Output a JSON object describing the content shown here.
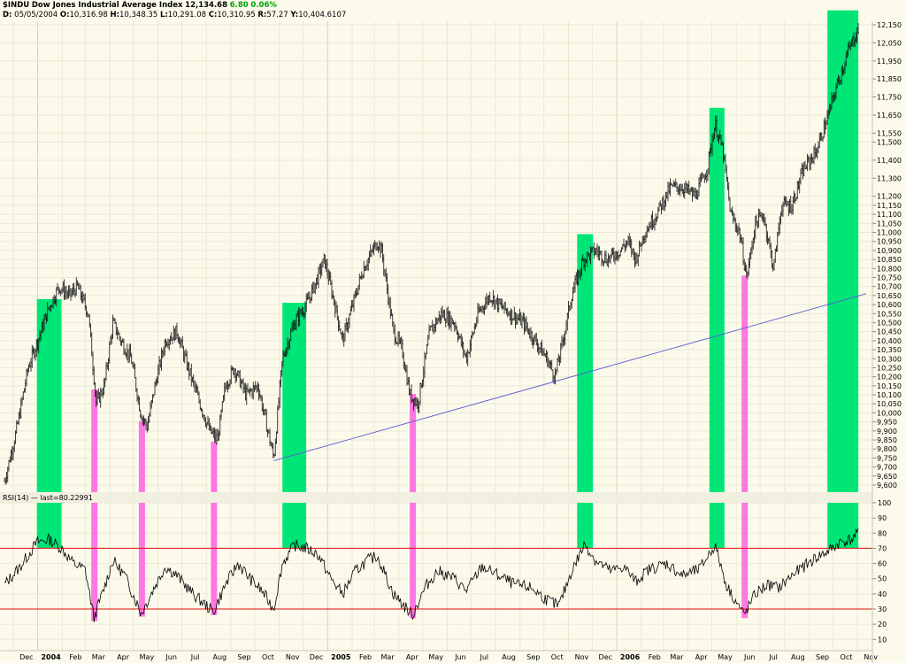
{
  "header": {
    "ticker": "$INDU",
    "name": "Dow Jones Industrial Average Index",
    "last": "12,134.68",
    "change": "6.80",
    "change_pct": "0.06%",
    "d_label": "D:",
    "d_value": "05/05/2004",
    "o_label": "O:",
    "o_value": "10,316.98",
    "h_label": "H:",
    "h_value": "10,348.35",
    "l_label": "L:",
    "l_value": "10,291.08",
    "c_label": "C:",
    "c_value": "10,310.95",
    "r_label": "R:",
    "r_value": "57.27",
    "y_label": "Y:",
    "y_value": "10,404.6107"
  },
  "rsi_legend": "RSI(14) — last=80.22991",
  "chart_data": [
    {
      "type": "line",
      "series_style": "ohlc-bars",
      "ticker": "$INDU",
      "ylim": [
        9550,
        12230
      ],
      "y_ticks": [
        "12,150",
        "12,050",
        "11,950",
        "11,850",
        "11,750",
        "11,650",
        "11,550",
        "11,500",
        "11,400",
        "11,300",
        "11,200",
        "11,150",
        "11,100",
        "11,050",
        "11,000",
        "10,950",
        "10,900",
        "10,850",
        "10,800",
        "10,750",
        "10,700",
        "10,650",
        "10,600",
        "10,550",
        "10,500",
        "10,450",
        "10,400",
        "10,350",
        "10,300",
        "10,250",
        "10,200",
        "10,150",
        "10,100",
        "10,050",
        "10,000",
        "9,950",
        "9,900",
        "9,850",
        "9,800",
        "9,750",
        "9,700",
        "9,650",
        "9,600"
      ],
      "x_labels": [
        {
          "text": "Dec",
          "date": "2003-12"
        },
        {
          "text": "2004",
          "date": "2004-01",
          "bold": true
        },
        {
          "text": "Feb",
          "date": "2004-02"
        },
        {
          "text": "Mar",
          "date": "2004-03"
        },
        {
          "text": "Apr",
          "date": "2004-04"
        },
        {
          "text": "May",
          "date": "2004-05"
        },
        {
          "text": "Jun",
          "date": "2004-06"
        },
        {
          "text": "Jul",
          "date": "2004-07"
        },
        {
          "text": "Aug",
          "date": "2004-08"
        },
        {
          "text": "Sep",
          "date": "2004-09"
        },
        {
          "text": "Oct",
          "date": "2004-10"
        },
        {
          "text": "Nov",
          "date": "2004-11"
        },
        {
          "text": "Dec",
          "date": "2004-12"
        },
        {
          "text": "2005",
          "date": "2005-01",
          "bold": true
        },
        {
          "text": "Feb",
          "date": "2005-02"
        },
        {
          "text": "Mar",
          "date": "2005-03"
        },
        {
          "text": "Apr",
          "date": "2005-04"
        },
        {
          "text": "May",
          "date": "2005-05"
        },
        {
          "text": "Jun",
          "date": "2005-06"
        },
        {
          "text": "Jul",
          "date": "2005-07"
        },
        {
          "text": "Aug",
          "date": "2005-08"
        },
        {
          "text": "Sep",
          "date": "2005-09"
        },
        {
          "text": "Oct",
          "date": "2005-10"
        },
        {
          "text": "Nov",
          "date": "2005-11"
        },
        {
          "text": "Dec",
          "date": "2005-12"
        },
        {
          "text": "2006",
          "date": "2006-01",
          "bold": true
        },
        {
          "text": "Feb",
          "date": "2006-02"
        },
        {
          "text": "Mar",
          "date": "2006-03"
        },
        {
          "text": "Apr",
          "date": "2006-04"
        },
        {
          "text": "May",
          "date": "2006-05"
        },
        {
          "text": "Jun",
          "date": "2006-06"
        },
        {
          "text": "Jul",
          "date": "2006-07"
        },
        {
          "text": "Aug",
          "date": "2006-08"
        },
        {
          "text": "Sep",
          "date": "2006-09"
        },
        {
          "text": "Oct",
          "date": "2006-10"
        },
        {
          "text": "Nov",
          "date": "2006-11"
        }
      ],
      "price_path": [
        [
          "2003-11-20",
          9620
        ],
        [
          "2003-12-05",
          9900
        ],
        [
          "2003-12-20",
          10250
        ],
        [
          "2004-01-05",
          10450
        ],
        [
          "2004-01-15",
          10580
        ],
        [
          "2004-01-28",
          10700
        ],
        [
          "2004-02-10",
          10650
        ],
        [
          "2004-02-20",
          10700
        ],
        [
          "2004-03-05",
          10550
        ],
        [
          "2004-03-15",
          10050
        ],
        [
          "2004-03-25",
          10150
        ],
        [
          "2004-04-05",
          10500
        ],
        [
          "2004-04-15",
          10400
        ],
        [
          "2004-04-28",
          10300
        ],
        [
          "2004-05-10",
          10000
        ],
        [
          "2004-05-18",
          9920
        ],
        [
          "2004-05-28",
          10150
        ],
        [
          "2004-06-10",
          10400
        ],
        [
          "2004-06-25",
          10450
        ],
        [
          "2004-07-05",
          10300
        ],
        [
          "2004-07-20",
          10100
        ],
        [
          "2004-08-05",
          9900
        ],
        [
          "2004-08-15",
          9850
        ],
        [
          "2004-08-25",
          10150
        ],
        [
          "2004-09-05",
          10250
        ],
        [
          "2004-09-20",
          10100
        ],
        [
          "2004-10-05",
          10150
        ],
        [
          "2004-10-15",
          9950
        ],
        [
          "2004-10-25",
          9750
        ],
        [
          "2004-11-05",
          10300
        ],
        [
          "2004-11-20",
          10500
        ],
        [
          "2004-12-05",
          10600
        ],
        [
          "2004-12-15",
          10700
        ],
        [
          "2004-12-28",
          10850
        ],
        [
          "2005-01-10",
          10600
        ],
        [
          "2005-01-20",
          10400
        ],
        [
          "2005-02-05",
          10650
        ],
        [
          "2005-02-15",
          10800
        ],
        [
          "2005-03-05",
          10950
        ],
        [
          "2005-03-10",
          10900
        ],
        [
          "2005-03-25",
          10450
        ],
        [
          "2005-04-05",
          10350
        ],
        [
          "2005-04-15",
          10100
        ],
        [
          "2005-04-25",
          10050
        ],
        [
          "2005-05-10",
          10450
        ],
        [
          "2005-05-25",
          10550
        ],
        [
          "2005-06-10",
          10500
        ],
        [
          "2005-06-25",
          10300
        ],
        [
          "2005-07-10",
          10550
        ],
        [
          "2005-07-25",
          10650
        ],
        [
          "2005-08-05",
          10600
        ],
        [
          "2005-08-20",
          10550
        ],
        [
          "2005-09-05",
          10500
        ],
        [
          "2005-09-20",
          10400
        ],
        [
          "2005-10-05",
          10300
        ],
        [
          "2005-10-15",
          10200
        ],
        [
          "2005-10-25",
          10400
        ],
        [
          "2005-11-05",
          10650
        ],
        [
          "2005-11-20",
          10850
        ],
        [
          "2005-12-05",
          10900
        ],
        [
          "2005-12-20",
          10850
        ],
        [
          "2006-01-05",
          10900
        ],
        [
          "2006-01-15",
          10950
        ],
        [
          "2006-01-25",
          10850
        ],
        [
          "2006-02-05",
          11000
        ],
        [
          "2006-02-20",
          11100
        ],
        [
          "2006-03-10",
          11250
        ],
        [
          "2006-03-25",
          11250
        ],
        [
          "2006-04-10",
          11200
        ],
        [
          "2006-04-25",
          11350
        ],
        [
          "2006-05-05",
          11600
        ],
        [
          "2006-05-15",
          11450
        ],
        [
          "2006-05-25",
          11100
        ],
        [
          "2006-06-05",
          11000
        ],
        [
          "2006-06-14",
          10750
        ],
        [
          "2006-06-25",
          11050
        ],
        [
          "2006-07-05",
          11100
        ],
        [
          "2006-07-18",
          10800
        ],
        [
          "2006-07-28",
          11150
        ],
        [
          "2006-08-10",
          11150
        ],
        [
          "2006-08-25",
          11350
        ],
        [
          "2006-09-10",
          11450
        ],
        [
          "2006-09-25",
          11650
        ],
        [
          "2006-10-05",
          11800
        ],
        [
          "2006-10-20",
          12000
        ],
        [
          "2006-11-02",
          12130
        ]
      ],
      "trendline": [
        [
          "2004-10-25",
          9735
        ],
        [
          "2006-11-12",
          10660
        ]
      ],
      "green_zones": [
        [
          "2003-12-31",
          "2004-01-31",
          10630
        ],
        [
          "2004-11-05",
          "2004-12-05",
          10610
        ],
        [
          "2005-11-12",
          "2005-12-02",
          10990
        ],
        [
          "2006-04-28",
          "2006-05-17",
          11690
        ],
        [
          "2006-09-24",
          "2006-11-02",
          12230
        ]
      ],
      "magenta_bars": [
        [
          "2004-03-12",
          10130
        ],
        [
          "2004-05-11",
          9955
        ],
        [
          "2004-08-10",
          9840
        ],
        [
          "2005-04-18",
          10105
        ],
        [
          "2006-06-11",
          10760
        ]
      ],
      "colors": {
        "green": "#00e676",
        "magenta": "#ff77e0",
        "bars": "#111111",
        "trendline": "#5a5ad6",
        "bg": "#fbfaeb",
        "grid": "#e8e6cf"
      }
    },
    {
      "type": "line",
      "name": "RSI(14)",
      "ylim": [
        10,
        110
      ],
      "y_ticks": [
        "100",
        "90",
        "80",
        "70",
        "60",
        "50",
        "40",
        "30",
        "20",
        "10"
      ],
      "overbought": 70,
      "oversold": 30,
      "rsi_path": [
        [
          "2003-11-20",
          46
        ],
        [
          "2003-12-10",
          58
        ],
        [
          "2003-12-31",
          74
        ],
        [
          "2004-01-15",
          76
        ],
        [
          "2004-01-31",
          70
        ],
        [
          "2004-02-15",
          60
        ],
        [
          "2004-03-01",
          56
        ],
        [
          "2004-03-12",
          24
        ],
        [
          "2004-03-25",
          44
        ],
        [
          "2004-04-05",
          62
        ],
        [
          "2004-04-20",
          52
        ],
        [
          "2004-05-11",
          27
        ],
        [
          "2004-05-25",
          42
        ],
        [
          "2004-06-10",
          58
        ],
        [
          "2004-06-25",
          52
        ],
        [
          "2004-07-15",
          40
        ],
        [
          "2004-08-10",
          28
        ],
        [
          "2004-08-25",
          46
        ],
        [
          "2004-09-10",
          60
        ],
        [
          "2004-09-25",
          50
        ],
        [
          "2004-10-10",
          42
        ],
        [
          "2004-10-25",
          30
        ],
        [
          "2004-11-05",
          60
        ],
        [
          "2004-11-20",
          72
        ],
        [
          "2004-12-05",
          70
        ],
        [
          "2004-12-20",
          66
        ],
        [
          "2005-01-05",
          50
        ],
        [
          "2005-01-20",
          40
        ],
        [
          "2005-02-05",
          55
        ],
        [
          "2005-02-20",
          62
        ],
        [
          "2005-03-05",
          65
        ],
        [
          "2005-03-25",
          40
        ],
        [
          "2005-04-18",
          26
        ],
        [
          "2005-05-05",
          45
        ],
        [
          "2005-05-20",
          55
        ],
        [
          "2005-06-10",
          50
        ],
        [
          "2005-06-25",
          42
        ],
        [
          "2005-07-15",
          58
        ],
        [
          "2005-08-05",
          52
        ],
        [
          "2005-08-25",
          46
        ],
        [
          "2005-09-15",
          44
        ],
        [
          "2005-10-05",
          36
        ],
        [
          "2005-10-20",
          32
        ],
        [
          "2005-11-05",
          55
        ],
        [
          "2005-11-22",
          73
        ],
        [
          "2005-12-05",
          62
        ],
        [
          "2005-12-25",
          55
        ],
        [
          "2006-01-10",
          58
        ],
        [
          "2006-01-25",
          48
        ],
        [
          "2006-02-10",
          56
        ],
        [
          "2006-03-05",
          60
        ],
        [
          "2006-03-25",
          52
        ],
        [
          "2006-04-15",
          56
        ],
        [
          "2006-05-05",
          72
        ],
        [
          "2006-05-20",
          45
        ],
        [
          "2006-06-11",
          26
        ],
        [
          "2006-06-25",
          40
        ],
        [
          "2006-07-10",
          46
        ],
        [
          "2006-07-25",
          44
        ],
        [
          "2006-08-10",
          52
        ],
        [
          "2006-08-25",
          58
        ],
        [
          "2006-09-10",
          64
        ],
        [
          "2006-09-25",
          68
        ],
        [
          "2006-10-10",
          74
        ],
        [
          "2006-10-25",
          76
        ],
        [
          "2006-11-02",
          80
        ]
      ],
      "colors": {
        "line": "#000000",
        "ob": "#e01010",
        "os": "#e01010"
      }
    }
  ]
}
